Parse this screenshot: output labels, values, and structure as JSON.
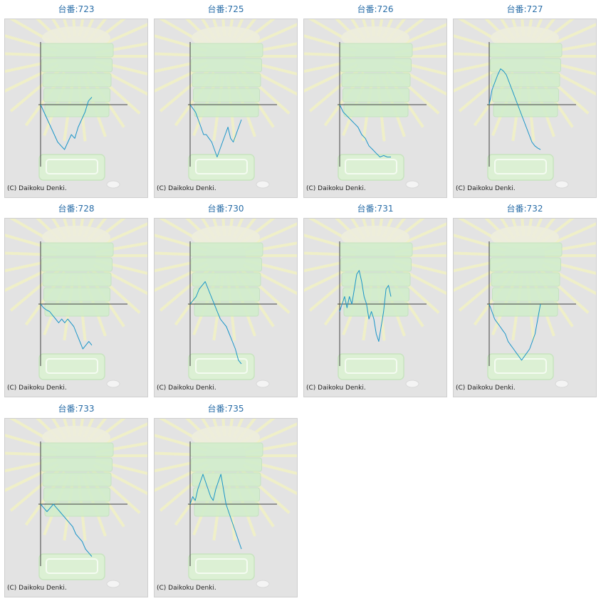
{
  "colors": {
    "line": "#1a95c8",
    "axis": "#404040",
    "title": "#2a6ea8",
    "panel_bg": "#e3e3e3"
  },
  "chart_data": [
    {
      "type": "line",
      "title": "台番:723",
      "footer": "(C) Daikoku Denki.",
      "values": [
        0,
        -10,
        -20,
        -30,
        -40,
        -50,
        -55,
        -60,
        -50,
        -40,
        -45,
        -30,
        -20,
        -10,
        5,
        10
      ]
    },
    {
      "type": "line",
      "title": "台番:725",
      "footer": "(C) Daikoku Denki.",
      "values": [
        0,
        -5,
        -10,
        -20,
        -30,
        -40,
        -40,
        -45,
        -50,
        -60,
        -70,
        -60,
        -50,
        -40,
        -30,
        -45,
        -50,
        -40,
        -30,
        -20
      ]
    },
    {
      "type": "line",
      "title": "台番:726",
      "footer": "(C) Daikoku Denki.",
      "values": [
        0,
        -10,
        -15,
        -20,
        -25,
        -30,
        -40,
        -45,
        -55,
        -60,
        -65,
        -70,
        -68,
        -70,
        -70
      ]
    },
    {
      "type": "line",
      "title": "台番:727",
      "footer": "(C) Daikoku Denki.",
      "values": [
        0,
        20,
        30,
        40,
        48,
        45,
        40,
        30,
        20,
        10,
        0,
        -10,
        -20,
        -30,
        -40,
        -50,
        -55,
        -58,
        -60
      ]
    },
    {
      "type": "line",
      "title": "台番:728",
      "footer": "(C) Daikoku Denki.",
      "values": [
        0,
        -5,
        -8,
        -10,
        -15,
        -20,
        -25,
        -20,
        -25,
        -20,
        -25,
        -30,
        -40,
        -50,
        -60,
        -55,
        -50,
        -55
      ]
    },
    {
      "type": "line",
      "title": "台番:730",
      "footer": "(C) Daikoku Denki.",
      "values": [
        0,
        5,
        10,
        20,
        25,
        30,
        20,
        10,
        0,
        -10,
        -20,
        -25,
        -30,
        -40,
        -50,
        -60,
        -75,
        -80
      ]
    },
    {
      "type": "line",
      "title": "台番:731",
      "footer": "(C) Daikoku Denki.",
      "values": [
        -10,
        0,
        10,
        -5,
        10,
        0,
        20,
        40,
        45,
        30,
        10,
        0,
        -20,
        -10,
        -20,
        -40,
        -50,
        -30,
        -10,
        20,
        25,
        10
      ]
    },
    {
      "type": "line",
      "title": "台番:732",
      "footer": "(C) Daikoku Denki.",
      "values": [
        0,
        -10,
        -20,
        -25,
        -30,
        -35,
        -40,
        -50,
        -55,
        -60,
        -65,
        -70,
        -75,
        -70,
        -65,
        -60,
        -50,
        -40,
        -20,
        0
      ]
    },
    {
      "type": "line",
      "title": "台番:733",
      "footer": "(C) Daikoku Denki.",
      "values": [
        0,
        -5,
        -10,
        -5,
        0,
        -5,
        -10,
        -15,
        -20,
        -25,
        -30,
        -40,
        -45,
        -50,
        -60,
        -65,
        -70
      ]
    },
    {
      "type": "line",
      "title": "台番:735",
      "footer": "(C) Daikoku Denki.",
      "values": [
        0,
        10,
        5,
        20,
        30,
        40,
        30,
        20,
        10,
        5,
        20,
        30,
        40,
        20,
        0,
        -10,
        -20,
        -30,
        -40,
        -50,
        -60
      ]
    }
  ]
}
